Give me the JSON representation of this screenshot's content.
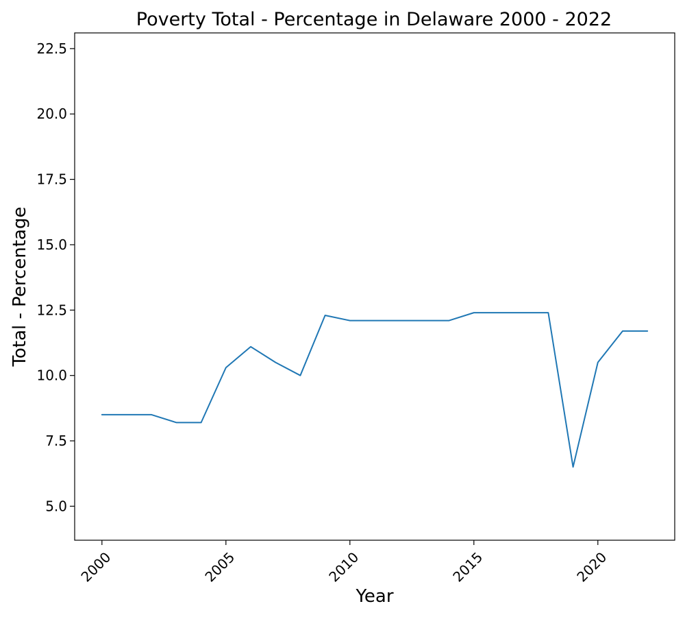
{
  "chart_data": {
    "type": "line",
    "title": "Poverty Total - Percentage in Delaware 2000 - 2022",
    "xlabel": "Year",
    "ylabel": "Total - Percentage",
    "xlim": [
      1998.9,
      2023.1
    ],
    "ylim": [
      3.7,
      23.1
    ],
    "xticks": [
      2000,
      2005,
      2010,
      2015,
      2020
    ],
    "xtick_labels": [
      "2000",
      "2005",
      "2010",
      "2015",
      "2020"
    ],
    "yticks": [
      5.0,
      7.5,
      10.0,
      12.5,
      15.0,
      17.5,
      20.0,
      22.5
    ],
    "ytick_labels": [
      "5.0",
      "7.5",
      "10.0",
      "12.5",
      "15.0",
      "17.5",
      "20.0",
      "22.5"
    ],
    "grid": false,
    "x": [
      2000,
      2001,
      2002,
      2003,
      2004,
      2005,
      2006,
      2007,
      2008,
      2009,
      2010,
      2011,
      2012,
      2013,
      2014,
      2015,
      2016,
      2017,
      2018,
      2019,
      2020,
      2021,
      2022
    ],
    "series": [
      {
        "color": "#1f77b4",
        "values": [
          8.5,
          8.5,
          8.5,
          8.2,
          8.2,
          10.3,
          11.1,
          10.5,
          10.0,
          12.3,
          12.1,
          12.1,
          12.1,
          12.1,
          12.1,
          12.4,
          12.4,
          12.4,
          12.4,
          6.5,
          10.5,
          11.7,
          11.7
        ]
      }
    ]
  }
}
